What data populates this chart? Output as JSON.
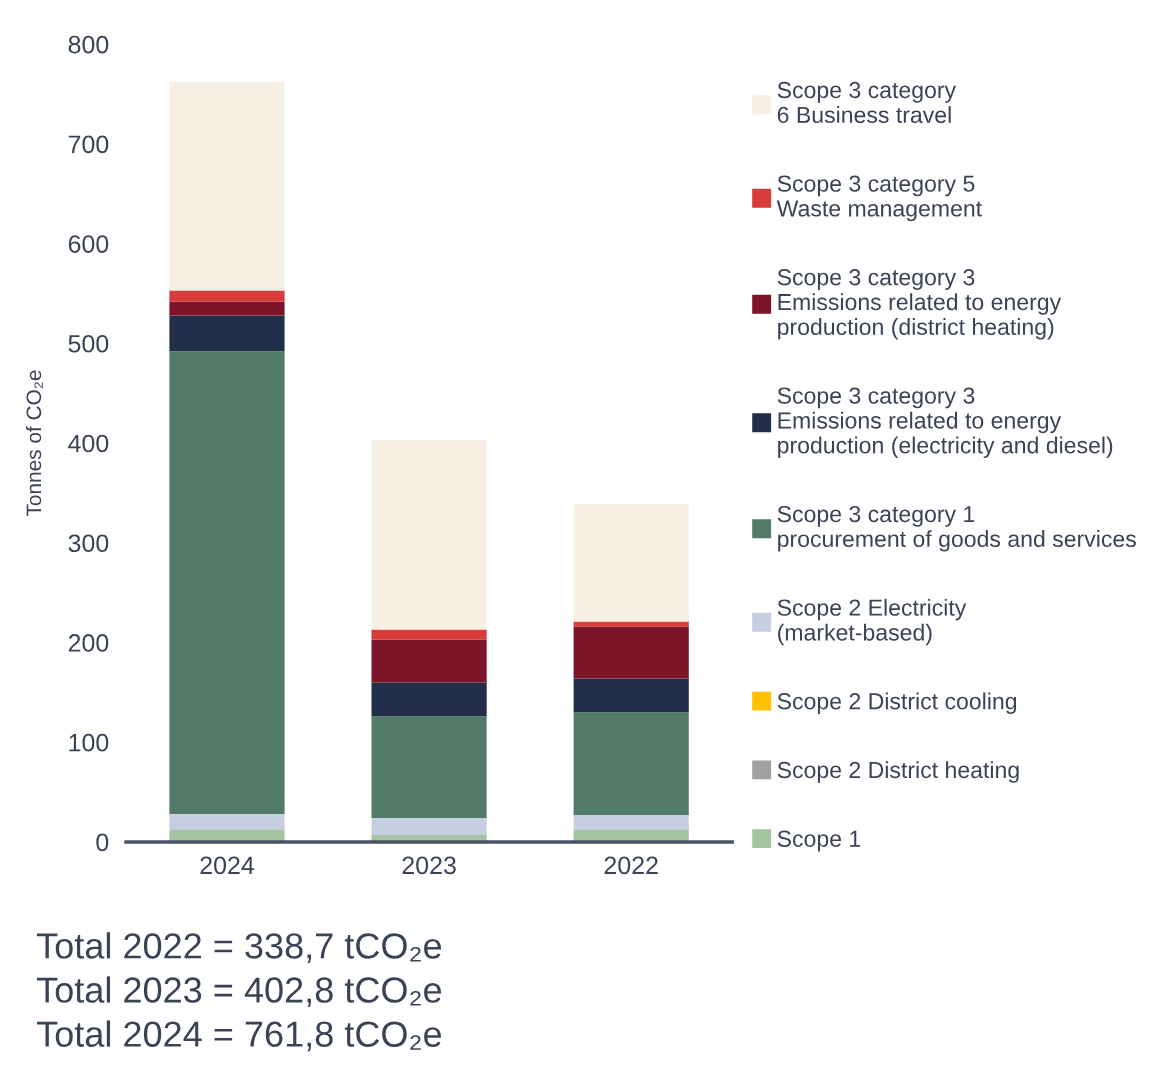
{
  "chart_data": {
    "type": "bar",
    "stacked": true,
    "ylabel": "Tonnes of CO₂e",
    "categories": [
      "2024",
      "2023",
      "2022"
    ],
    "series": [
      {
        "name": "Scope 1",
        "color": "#a3c4a0",
        "values": [
          12,
          7,
          12
        ]
      },
      {
        "name": "Scope 2 District heating",
        "color": "#a0a0a0",
        "values": [
          0,
          0,
          0
        ]
      },
      {
        "name": "Scope 2 District cooling",
        "color": "#ffc000",
        "values": [
          0,
          0,
          0
        ]
      },
      {
        "name": "Scope 2 Electricity\n(market-based)",
        "color": "#c5cfdf",
        "values": [
          16,
          17,
          15
        ]
      },
      {
        "name": "Scope 3 category 1\nprocurement of goods and services",
        "color": "#527a68",
        "values": [
          464,
          102,
          103
        ]
      },
      {
        "name": "Scope 3 category 3\nEmissions related to energy\nproduction (electricity and diesel)",
        "color": "#222f4a",
        "values": [
          36,
          34,
          34
        ]
      },
      {
        "name": "Scope 3 category 3\nEmissions related to energy\nproduction (district heating)",
        "color": "#7e1427",
        "values": [
          14,
          43,
          52
        ]
      },
      {
        "name": "Scope 3 category 5\nWaste management",
        "color": "#d93a3a",
        "values": [
          11,
          10,
          5
        ]
      },
      {
        "name": "Scope 3 category\n6 Business travel",
        "color": "#f8efe4",
        "values": [
          209,
          190,
          118
        ]
      }
    ],
    "ylim": [
      0,
      800
    ],
    "yticks": [
      0,
      100,
      200,
      300,
      400,
      500,
      600,
      700,
      800
    ],
    "legend": "right",
    "annotations": [
      "Total 2022 = 338,7 tCO₂e",
      "Total 2023 = 402,8 tCO₂e",
      "Total 2024 = 761,8 tCO₂e"
    ]
  }
}
